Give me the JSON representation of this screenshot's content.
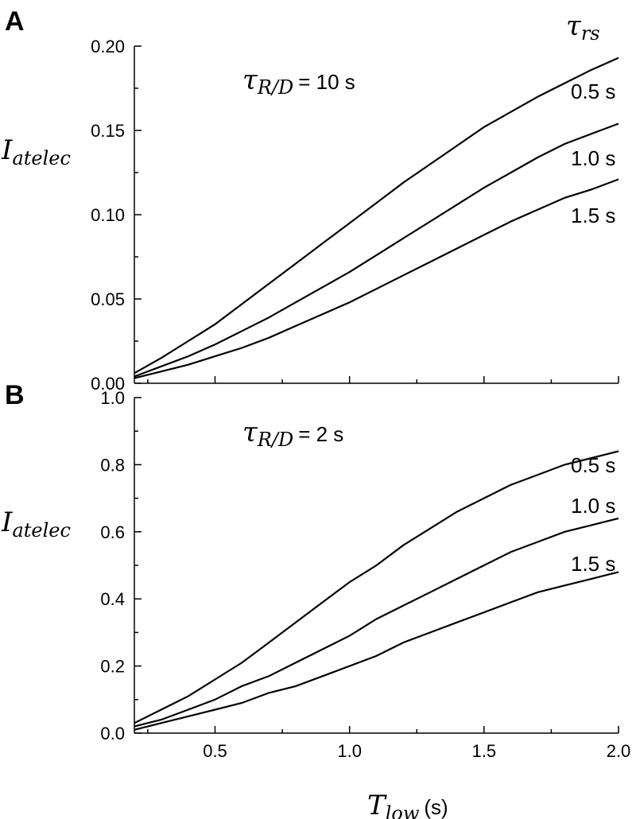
{
  "figure": {
    "legend_header": {
      "main": "τ",
      "sub": "rs"
    },
    "x_axis_label": {
      "main": "T",
      "sub": "low",
      "unit": "(s)"
    }
  },
  "chart_data": [
    {
      "type": "line",
      "panel_label": "A",
      "annotation": {
        "main": "τ",
        "sub": "R/D",
        "value": "= 10 s"
      },
      "ylabel": {
        "main": "I",
        "sub": "atelec"
      },
      "xlim": [
        0.2,
        2.0
      ],
      "ylim": [
        0.0,
        0.2
      ],
      "x_ticks": [
        0.5,
        1.0,
        1.5,
        2.0
      ],
      "y_ticks": [
        0.0,
        0.05,
        0.1,
        0.15,
        0.2
      ],
      "y_tick_labels": [
        "0.00",
        "0.05",
        "0.10",
        "0.15",
        "0.20"
      ],
      "x": [
        0.2,
        0.3,
        0.4,
        0.5,
        0.6,
        0.7,
        0.8,
        0.9,
        1.0,
        1.1,
        1.2,
        1.3,
        1.4,
        1.5,
        1.6,
        1.7,
        1.8,
        1.9,
        2.0
      ],
      "series": [
        {
          "label": "0.5 s",
          "values": [
            0.006,
            0.015,
            0.025,
            0.035,
            0.047,
            0.059,
            0.071,
            0.083,
            0.095,
            0.107,
            0.119,
            0.13,
            0.141,
            0.152,
            0.161,
            0.17,
            0.178,
            0.186,
            0.193
          ]
        },
        {
          "label": "1.0 s",
          "values": [
            0.004,
            0.01,
            0.016,
            0.023,
            0.031,
            0.039,
            0.048,
            0.057,
            0.066,
            0.076,
            0.086,
            0.096,
            0.106,
            0.116,
            0.125,
            0.134,
            0.142,
            0.148,
            0.154
          ]
        },
        {
          "label": "1.5 s",
          "values": [
            0.003,
            0.007,
            0.011,
            0.016,
            0.021,
            0.027,
            0.034,
            0.041,
            0.048,
            0.056,
            0.064,
            0.072,
            0.08,
            0.088,
            0.096,
            0.103,
            0.11,
            0.115,
            0.121
          ]
        }
      ]
    },
    {
      "type": "line",
      "panel_label": "B",
      "annotation": {
        "main": "τ",
        "sub": "R/D",
        "value": "= 2 s"
      },
      "ylabel": {
        "main": "I",
        "sub": "atelec"
      },
      "xlim": [
        0.2,
        2.0
      ],
      "ylim": [
        0.0,
        1.0
      ],
      "x_ticks": [
        0.5,
        1.0,
        1.5,
        2.0
      ],
      "x_tick_labels": [
        "0.5",
        "1.0",
        "1.5",
        "2.0"
      ],
      "y_ticks": [
        0.0,
        0.2,
        0.4,
        0.6,
        0.8,
        1.0
      ],
      "y_tick_labels": [
        "0.0",
        "0.2",
        "0.4",
        "0.6",
        "0.8",
        "1.0"
      ],
      "x": [
        0.2,
        0.3,
        0.4,
        0.5,
        0.6,
        0.7,
        0.8,
        0.9,
        1.0,
        1.1,
        1.2,
        1.3,
        1.4,
        1.5,
        1.6,
        1.7,
        1.8,
        1.9,
        2.0
      ],
      "series": [
        {
          "label": "0.5 s",
          "values": [
            0.03,
            0.07,
            0.11,
            0.16,
            0.21,
            0.27,
            0.33,
            0.39,
            0.45,
            0.5,
            0.56,
            0.61,
            0.66,
            0.7,
            0.74,
            0.77,
            0.8,
            0.82,
            0.84
          ]
        },
        {
          "label": "1.0 s",
          "values": [
            0.02,
            0.04,
            0.07,
            0.1,
            0.14,
            0.17,
            0.21,
            0.25,
            0.29,
            0.34,
            0.38,
            0.42,
            0.46,
            0.5,
            0.54,
            0.57,
            0.6,
            0.62,
            0.64
          ]
        },
        {
          "label": "1.5 s",
          "values": [
            0.01,
            0.03,
            0.05,
            0.07,
            0.09,
            0.12,
            0.14,
            0.17,
            0.2,
            0.23,
            0.27,
            0.3,
            0.33,
            0.36,
            0.39,
            0.42,
            0.44,
            0.46,
            0.48
          ]
        }
      ]
    }
  ]
}
